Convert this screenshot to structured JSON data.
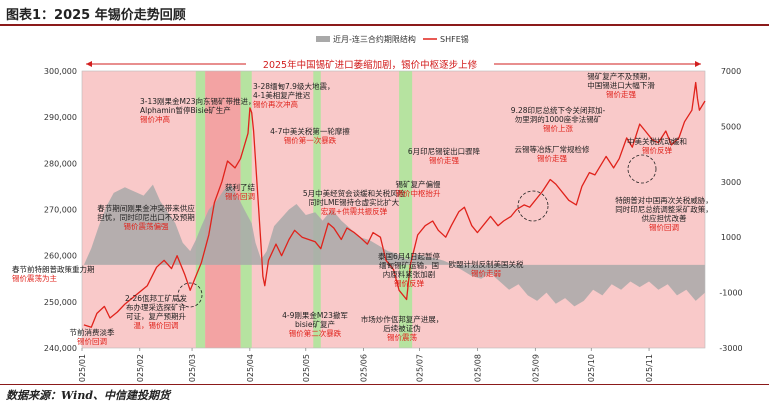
{
  "figure": {
    "title": "图表1：2025 年锡价走势回顾",
    "source": "数据来源：Wind、中信建投期货"
  },
  "chart_data": {
    "type": "line",
    "banner": "2025年中国锡矿进口萎缩加剧，锡价中枢逐步上修",
    "legend": {
      "placement": "top-right",
      "items": [
        "近月-连三合约期限结构",
        "SHFE锡"
      ]
    },
    "colors": {
      "price": "#e0221b",
      "spread": "#a9a9a9",
      "bg_up": "#f9c9c9",
      "bg_down": "#f3a3a3",
      "green": "#b6e3a0",
      "banner": "#d21e1e",
      "note": "#222222",
      "note_red": "#e0221b"
    },
    "left_axis": {
      "min": 240000,
      "max": 300000,
      "ticks": [
        240000,
        250000,
        260000,
        270000,
        280000,
        290000,
        300000
      ],
      "tick_labels": [
        "240,000",
        "250,000",
        "260,000",
        "270,000",
        "280,000",
        "290,000",
        "300,000"
      ]
    },
    "right_axis": {
      "min": -3000,
      "max": 7000,
      "ticks": [
        -3000,
        -1000,
        1000,
        3000,
        5000,
        7000
      ],
      "tick_labels": [
        "-3000",
        "-1000",
        "1000",
        "3000",
        "5000",
        "7000"
      ]
    },
    "x_axis": {
      "start": "2025-01-01",
      "end": "2025-12-01",
      "ticks": [
        "2025/01",
        "2025/02",
        "2025/03",
        "2025/04",
        "2025/05",
        "2025/06",
        "2025/07",
        "2025/08",
        "2025/09",
        "2025/10",
        "2025/11"
      ]
    },
    "green_periods": [
      [
        "2025-03-03",
        "2025-03-08"
      ],
      [
        "2025-03-27",
        "2025-04-02"
      ],
      [
        "2025-05-05",
        "2025-05-09"
      ],
      [
        "2025-06-20",
        "2025-06-27"
      ]
    ],
    "dark_period": [
      "2025-03-08",
      "2025-03-27"
    ],
    "series": [
      {
        "name": "SHFE锡",
        "axis": "left",
        "points": [
          [
            "2025-01-02",
            245000
          ],
          [
            "2025-01-06",
            244500
          ],
          [
            "2025-01-09",
            247500
          ],
          [
            "2025-01-13",
            249000
          ],
          [
            "2025-01-16",
            246500
          ],
          [
            "2025-01-20",
            247800
          ],
          [
            "2025-01-24",
            249500
          ],
          [
            "2025-02-05",
            253500
          ],
          [
            "2025-02-10",
            257500
          ],
          [
            "2025-02-14",
            259000
          ],
          [
            "2025-02-18",
            257200
          ],
          [
            "2025-02-21",
            260000
          ],
          [
            "2025-02-25",
            256000
          ],
          [
            "2025-02-28",
            252500
          ],
          [
            "2025-03-03",
            255500
          ],
          [
            "2025-03-06",
            258500
          ],
          [
            "2025-03-10",
            264500
          ],
          [
            "2025-03-13",
            271500
          ],
          [
            "2025-03-17",
            276000
          ],
          [
            "2025-03-20",
            280500
          ],
          [
            "2025-03-24",
            279000
          ],
          [
            "2025-03-27",
            281000
          ],
          [
            "2025-03-31",
            286500
          ],
          [
            "2025-04-01",
            292000
          ],
          [
            "2025-04-02",
            291000
          ],
          [
            "2025-04-03",
            287000
          ],
          [
            "2025-04-07",
            262000
          ],
          [
            "2025-04-08",
            255500
          ],
          [
            "2025-04-09",
            253500
          ],
          [
            "2025-04-11",
            259000
          ],
          [
            "2025-04-15",
            262500
          ],
          [
            "2025-04-18",
            260000
          ],
          [
            "2025-04-22",
            263500
          ],
          [
            "2025-04-25",
            265500
          ],
          [
            "2025-04-29",
            264000
          ],
          [
            "2025-05-06",
            263000
          ],
          [
            "2025-05-09",
            261500
          ],
          [
            "2025-05-13",
            267000
          ],
          [
            "2025-05-16",
            266000
          ],
          [
            "2025-05-20",
            263500
          ],
          [
            "2025-05-23",
            266000
          ],
          [
            "2025-05-27",
            265000
          ],
          [
            "2025-05-30",
            264000
          ],
          [
            "2025-06-03",
            262500
          ],
          [
            "2025-06-06",
            265000
          ],
          [
            "2025-06-10",
            264000
          ],
          [
            "2025-06-13",
            259000
          ],
          [
            "2025-06-17",
            257000
          ],
          [
            "2025-06-20",
            252500
          ],
          [
            "2025-06-24",
            250500
          ],
          [
            "2025-06-26",
            258000
          ],
          [
            "2025-06-30",
            264500
          ],
          [
            "2025-07-04",
            266500
          ],
          [
            "2025-07-08",
            267500
          ],
          [
            "2025-07-11",
            265500
          ],
          [
            "2025-07-15",
            264000
          ],
          [
            "2025-07-18",
            266500
          ],
          [
            "2025-07-22",
            269500
          ],
          [
            "2025-07-25",
            270500
          ],
          [
            "2025-07-29",
            266500
          ],
          [
            "2025-08-01",
            265000
          ],
          [
            "2025-08-05",
            267000
          ],
          [
            "2025-08-08",
            268500
          ],
          [
            "2025-08-12",
            266500
          ],
          [
            "2025-08-15",
            267500
          ],
          [
            "2025-08-19",
            268500
          ],
          [
            "2025-08-22",
            270000
          ],
          [
            "2025-08-26",
            271000
          ],
          [
            "2025-08-29",
            270500
          ],
          [
            "2025-09-02",
            272500
          ],
          [
            "2025-09-05",
            274000
          ],
          [
            "2025-09-09",
            276500
          ],
          [
            "2025-09-12",
            275500
          ],
          [
            "2025-09-16",
            273500
          ],
          [
            "2025-09-19",
            272000
          ],
          [
            "2025-09-23",
            271000
          ],
          [
            "2025-09-26",
            275000
          ],
          [
            "2025-09-30",
            278000
          ],
          [
            "2025-10-03",
            277500
          ],
          [
            "2025-10-09",
            281500
          ],
          [
            "2025-10-13",
            279000
          ],
          [
            "2025-10-16",
            281000
          ],
          [
            "2025-10-20",
            285500
          ],
          [
            "2025-10-23",
            283500
          ],
          [
            "2025-10-27",
            288500
          ],
          [
            "2025-10-30",
            287000
          ],
          [
            "2025-11-03",
            285000
          ],
          [
            "2025-11-06",
            284500
          ],
          [
            "2025-11-10",
            287000
          ],
          [
            "2025-11-13",
            284000
          ],
          [
            "2025-11-17",
            285500
          ],
          [
            "2025-11-20",
            289000
          ],
          [
            "2025-11-24",
            291500
          ],
          [
            "2025-11-26",
            297500
          ],
          [
            "2025-11-27",
            294000
          ],
          [
            "2025-11-28",
            291500
          ],
          [
            "2025-12-01",
            293500
          ]
        ]
      },
      {
        "name": "近月-连三合约期限结构",
        "axis": "right",
        "points": [
          [
            "2025-01-02",
            0
          ],
          [
            "2025-01-06",
            600
          ],
          [
            "2025-01-10",
            1400
          ],
          [
            "2025-01-14",
            2100
          ],
          [
            "2025-01-18",
            2600
          ],
          [
            "2025-01-24",
            2800
          ],
          [
            "2025-02-03",
            2500
          ],
          [
            "2025-02-08",
            2900
          ],
          [
            "2025-02-12",
            2300
          ],
          [
            "2025-02-16",
            1900
          ],
          [
            "2025-02-20",
            1500
          ],
          [
            "2025-02-24",
            800
          ],
          [
            "2025-02-28",
            500
          ],
          [
            "2025-03-03",
            900
          ],
          [
            "2025-03-06",
            1400
          ],
          [
            "2025-03-10",
            2000
          ],
          [
            "2025-03-14",
            2300
          ],
          [
            "2025-03-18",
            2700
          ],
          [
            "2025-03-22",
            2900
          ],
          [
            "2025-03-26",
            2400
          ],
          [
            "2025-03-29",
            2000
          ],
          [
            "2025-04-02",
            1500
          ],
          [
            "2025-04-04",
            800
          ],
          [
            "2025-04-07",
            200
          ],
          [
            "2025-04-10",
            500
          ],
          [
            "2025-04-14",
            1400
          ],
          [
            "2025-04-18",
            1700
          ],
          [
            "2025-04-22",
            2000
          ],
          [
            "2025-04-26",
            2200
          ],
          [
            "2025-05-01",
            1800
          ],
          [
            "2025-05-06",
            1900
          ],
          [
            "2025-05-10",
            1600
          ],
          [
            "2025-05-15",
            2000
          ],
          [
            "2025-05-20",
            1600
          ],
          [
            "2025-05-25",
            1300
          ],
          [
            "2025-05-30",
            1000
          ],
          [
            "2025-06-04",
            900
          ],
          [
            "2025-06-09",
            700
          ],
          [
            "2025-06-14",
            500
          ],
          [
            "2025-06-19",
            400
          ],
          [
            "2025-06-24",
            200
          ],
          [
            "2025-06-29",
            400
          ],
          [
            "2025-07-04",
            300
          ],
          [
            "2025-07-09",
            250
          ],
          [
            "2025-07-14",
            150
          ],
          [
            "2025-07-19",
            0
          ],
          [
            "2025-07-24",
            -200
          ],
          [
            "2025-07-29",
            -400
          ],
          [
            "2025-08-03",
            -500
          ],
          [
            "2025-08-08",
            -300
          ],
          [
            "2025-08-13",
            -600
          ],
          [
            "2025-08-18",
            -900
          ],
          [
            "2025-08-23",
            -700
          ],
          [
            "2025-08-28",
            -1100
          ],
          [
            "2025-09-02",
            -1300
          ],
          [
            "2025-09-07",
            -1000
          ],
          [
            "2025-09-12",
            -1400
          ],
          [
            "2025-09-17",
            -1200
          ],
          [
            "2025-09-22",
            -1500
          ],
          [
            "2025-09-27",
            -1300
          ],
          [
            "2025-10-02",
            -900
          ],
          [
            "2025-10-07",
            -1100
          ],
          [
            "2025-10-12",
            -700
          ],
          [
            "2025-10-17",
            -900
          ],
          [
            "2025-10-22",
            -600
          ],
          [
            "2025-10-27",
            -800
          ],
          [
            "2025-11-01",
            -600
          ],
          [
            "2025-11-06",
            -900
          ],
          [
            "2025-11-11",
            -700
          ],
          [
            "2025-11-16",
            -1100
          ],
          [
            "2025-11-21",
            -900
          ],
          [
            "2025-11-26",
            -1300
          ],
          [
            "2025-12-01",
            -1000
          ]
        ]
      }
    ],
    "annotations": [
      {
        "lines": [
          "春节前特朗普政策重力期",
          "锡价震荡为主"
        ],
        "red_line": 1
      },
      {
        "lines": [
          "节前消费淡季",
          "锡价回调"
        ],
        "red_line": 1
      },
      {
        "lines": [
          "春节期间刚果金冲突带来供应",
          "担忧，同时印尼出口不及预期",
          "锡价震荡偏强"
        ],
        "red_line": 2
      },
      {
        "lines": [
          "2-26佤邦工矿局发",
          "布办理采选探矿许",
          "可证，复产预期升",
          "温，锡价回调"
        ],
        "red_line": 3
      },
      {
        "lines": [
          "3-13刚果金M23向东锡矿带推进，",
          "Alphamin暂停Bisie矿生产",
          "锡价冲高"
        ],
        "red_line": 2
      },
      {
        "lines": [
          "获利了结",
          "锡价回调"
        ],
        "red_line": 1
      },
      {
        "lines": [
          "3-28缅甸7.9级大地震，",
          "4-1美相复产推迟",
          "锡价再次冲高"
        ],
        "red_line": 2
      },
      {
        "lines": [
          "4-7中美关税第一轮摩擦",
          "锡价第一次暴跌"
        ],
        "red_line": 1
      },
      {
        "lines": [
          "4-9刚果金M23撤军",
          "bisie矿复产",
          "锡价第二次暴跌"
        ],
        "red_line": 2
      },
      {
        "lines": [
          "5月中美经贸会谈缓和关税风险",
          "同时LME锡持仓虚实比扩大",
          "宏观+供需共振反弹"
        ],
        "red_line": 2
      },
      {
        "lines": [
          "泰国6月4日起暂停",
          "缅甸锡矿运输，国",
          "内原料紧张加剧",
          "锡价反弹"
        ],
        "red_line": 3
      },
      {
        "lines": [
          "市场炒作佤邦复产进展，",
          "后续被证伪",
          "锡价震荡"
        ],
        "red_line": 2
      },
      {
        "lines": [
          "锡矿复产偏慢",
          "锡价中枢抬升"
        ],
        "red_line": 1
      },
      {
        "lines": [
          "6月印尼锡锭出口骤降",
          "锡价走强"
        ],
        "red_line": 1
      },
      {
        "lines": [
          "欧盟计划反制美国关税",
          "锡价走弱"
        ],
        "red_line": 1
      },
      {
        "lines": [
          "云锡等冶炼厂常规检修",
          "锡价走强"
        ],
        "red_line": 1
      },
      {
        "lines": [
          "9.28印尼总统下令关闭邦加-",
          "勿里洞的1000座非法锡矿",
          "锡价上涨"
        ],
        "red_line": 2
      },
      {
        "lines": [
          "锡矿复产不及预期，",
          "中国锡进口大幅下滑",
          "锡价走强"
        ],
        "red_line": 2
      },
      {
        "lines": [
          "中美关税扰动缓和",
          "锡价反弹"
        ],
        "red_line": 1
      },
      {
        "lines": [
          "特朗普对中国再次关税威胁，",
          "同时印尼总统调整采矿政策，",
          "供应担忧改善",
          "锡价回调"
        ],
        "red_line": 3
      }
    ]
  }
}
